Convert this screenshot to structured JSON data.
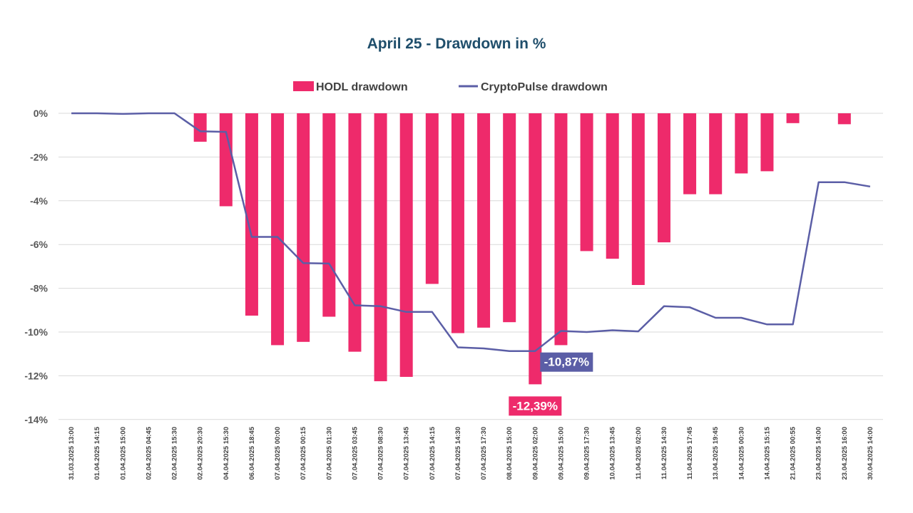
{
  "chart_data": {
    "type": "bar",
    "title": "April 25 - Drawdown in %",
    "xlabel": "",
    "ylabel": "",
    "ylim": [
      -14,
      0
    ],
    "yticks": [
      "0%",
      "-2%",
      "-4%",
      "-6%",
      "-8%",
      "-10%",
      "-12%",
      "-14%"
    ],
    "grid": true,
    "legend_position": "top",
    "categories": [
      "31.03.2025 13:00",
      "01.04.2025 14:15",
      "01.04.2025 15:00",
      "02.04.2025 04:45",
      "02.04.2025 15:30",
      "02.04.2025 20:30",
      "04.04.2025 15:30",
      "06.04.2025 18:45",
      "07.04.2025 00:00",
      "07.04.2025 00:15",
      "07.04.2025 01:30",
      "07.04.2025 03:45",
      "07.04.2025 08:30",
      "07.04.2025 13:45",
      "07.04.2025 14:15",
      "07.04.2025 14:30",
      "07.04.2025 17:30",
      "08.04.2025 15:00",
      "09.04.2025 02:00",
      "09.04.2025 15:00",
      "09.04.2025 17:30",
      "10.04.2025 13:45",
      "11.04.2025 02:00",
      "11.04.2025 14:30",
      "11.04.2025 17:45",
      "13.04.2025 19:45",
      "14.04.2025 00:30",
      "14.04.2025 15:15",
      "21.04.2025 00:55",
      "23.04.2025 14:00",
      "23.04.2025 16:00",
      "30.04.2025 14:00"
    ],
    "series": [
      {
        "name": "HODL drawdown",
        "type": "bar",
        "color": "#ee2a6b",
        "values": [
          0,
          0,
          0,
          0,
          0,
          -1.3,
          -4.25,
          -9.25,
          -10.6,
          -10.45,
          -9.3,
          -10.9,
          -12.25,
          -12.05,
          -7.8,
          -10.05,
          -9.8,
          -9.55,
          -12.39,
          -10.6,
          -6.3,
          -6.65,
          -7.85,
          -5.9,
          -3.7,
          -3.7,
          -2.75,
          -2.65,
          -0.45,
          0,
          -0.5,
          0
        ]
      },
      {
        "name": "CryptoPulse drawdown",
        "type": "line",
        "color": "#5b5ea6",
        "values": [
          0,
          0,
          -0.03,
          0,
          0,
          -0.82,
          -0.85,
          -5.65,
          -5.65,
          -6.85,
          -6.87,
          -8.78,
          -8.82,
          -9.08,
          -9.08,
          -10.7,
          -10.75,
          -10.87,
          -10.87,
          -9.95,
          -10.0,
          -9.92,
          -9.97,
          -8.82,
          -8.87,
          -9.35,
          -9.35,
          -9.65,
          -9.65,
          -3.15,
          -3.15,
          -3.35
        ]
      }
    ],
    "annotations": [
      {
        "series": "CryptoPulse drawdown",
        "category": "09.04.2025 02:00",
        "text": "-10,87%",
        "color": "#5b5ea6"
      },
      {
        "series": "HODL drawdown",
        "category": "09.04.2025 02:00",
        "text": "-12,39%",
        "color": "#ee2a6b"
      }
    ]
  }
}
